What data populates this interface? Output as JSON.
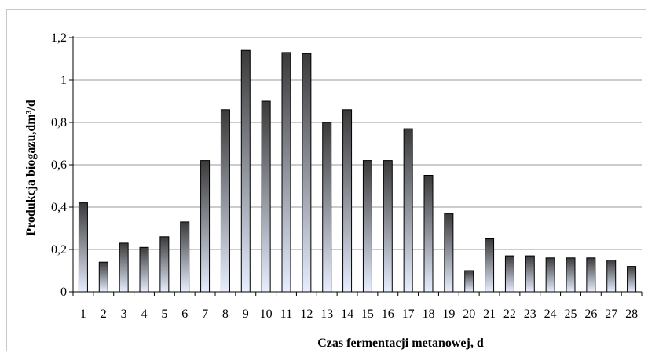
{
  "chart_data": {
    "type": "bar",
    "title": "",
    "xlabel": "Czas fermentacji  metanowej, d",
    "ylabel": "Produkcja biogazu,dm³/d",
    "categories": [
      "1",
      "2",
      "3",
      "4",
      "5",
      "6",
      "7",
      "8",
      "9",
      "10",
      "11",
      "12",
      "13",
      "14",
      "15",
      "16",
      "17",
      "18",
      "19",
      "20",
      "21",
      "22",
      "23",
      "24",
      "25",
      "26",
      "27",
      "28"
    ],
    "values": [
      0.42,
      0.14,
      0.23,
      0.21,
      0.26,
      0.33,
      0.62,
      0.86,
      1.14,
      0.9,
      1.13,
      1.125,
      0.8,
      0.86,
      0.62,
      0.62,
      0.77,
      0.55,
      0.37,
      0.1,
      0.25,
      0.17,
      0.17,
      0.16,
      0.16,
      0.16,
      0.15,
      0.12
    ],
    "ylim": [
      0,
      1.2
    ],
    "yticks": [
      "0",
      "0,2",
      "0,4",
      "0,6",
      "0,8",
      "1",
      "1,2"
    ],
    "grid": true,
    "legend": "none",
    "colors": {
      "bar_top": "#3a3a3a",
      "bar_bottom": "#e6eeff",
      "bar_stroke": "#000000",
      "grid": "#9a9a9a",
      "axis": "#000000"
    }
  }
}
